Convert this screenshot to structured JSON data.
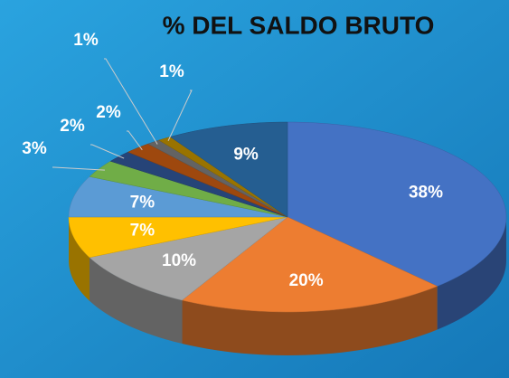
{
  "chart_data": {
    "type": "pie3d",
    "title": "% DEL SALDO BRUTO",
    "values": [
      38,
      20,
      10,
      7,
      7,
      3,
      2,
      2,
      1,
      1,
      9
    ],
    "value_labels": [
      "38%",
      "20%",
      "10%",
      "7%",
      "7%",
      "3%",
      "2%",
      "2%",
      "1%",
      "1%",
      "9%"
    ],
    "colors": [
      "#4472c4",
      "#ed7d31",
      "#a5a5a5",
      "#ffc000",
      "#5b9bd5",
      "#70ad47",
      "#264478",
      "#9e480e",
      "#636363",
      "#997300",
      "#255e91"
    ]
  }
}
